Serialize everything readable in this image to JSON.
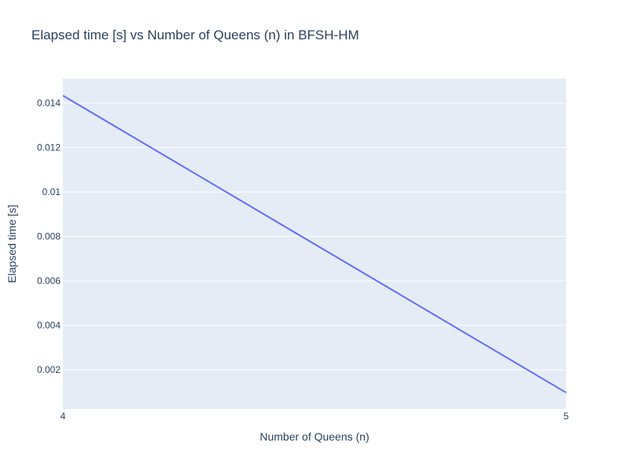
{
  "chart_data": {
    "type": "line",
    "title": "Elapsed time [s] vs Number of Queens (n) in BFSH-HM",
    "xlabel": "Number of Queens (n)",
    "ylabel": "Elapsed time [s]",
    "x": [
      4,
      5
    ],
    "series": [
      {
        "values": [
          0.01433,
          0.00098
        ],
        "color": "#636efa"
      }
    ],
    "xlim": [
      4,
      5
    ],
    "ylim": [
      0.00024,
      0.01509
    ],
    "x_ticks": [
      4,
      5
    ],
    "x_tick_labels": [
      "4",
      "5"
    ],
    "y_ticks": [
      0.002,
      0.004,
      0.006,
      0.008,
      0.01,
      0.012,
      0.014
    ],
    "y_tick_labels": [
      "0.002",
      "0.004",
      "0.006",
      "0.008",
      "0.01",
      "0.012",
      "0.014"
    ],
    "grid": true,
    "plot_background": "#e5ecf6",
    "gridline_color": "#ffffff",
    "text_color": "#2a3f5f"
  }
}
